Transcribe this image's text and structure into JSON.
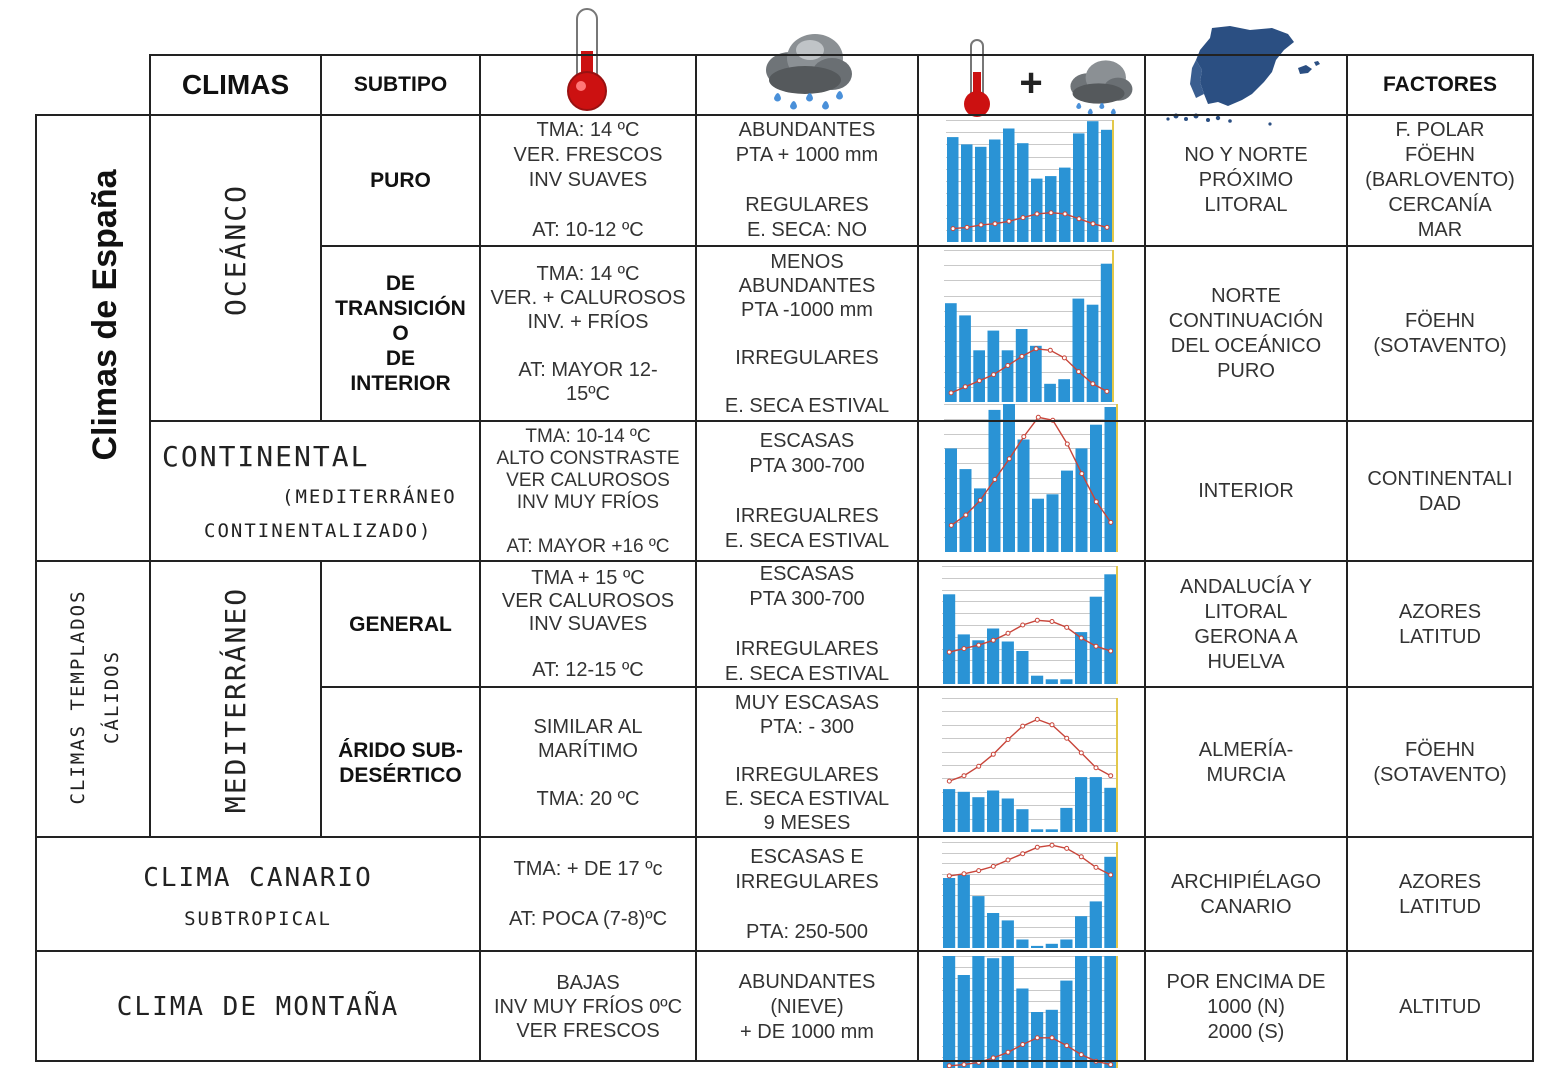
{
  "header": {
    "climas": "CLIMAS",
    "subtipo": "SUBTIPO",
    "factores": "FACTORES",
    "temp_icon": "thermometer-icon",
    "precip_icon": "rain-cloud-icon",
    "map_icon": "spain-map-icon"
  },
  "side": {
    "climas_espana": "Climas de España",
    "templados_1": "CLIMAS TEMPLADOS",
    "templados_2": "CÁLIDOS"
  },
  "groups": {
    "oceanico": "OCEÁNCO",
    "mediterraneo": "MEDITERRÁNEO",
    "continental": "CONTINENTAL",
    "continental_sub1": "(MEDITERRÁNEO",
    "continental_sub2": "CONTINENTALIZADO)",
    "canario": "CLIMA CANARIO",
    "canario_sub": "SUBTROPICAL",
    "montana": "CLIMA DE MONTAÑA"
  },
  "rows": [
    {
      "subtipo": "PURO",
      "temp": "TMA: 14 ºC\nVER. FRESCOS\nINV SUAVES\n\nAT: 10-12 ºC",
      "prec": "ABUNDANTES\nPTA + 1000 mm\n\nREGULARES\nE. SECA: NO",
      "loc": "NO Y NORTE\nPRÓXIMO\nLITORAL",
      "fact": "F. POLAR\nFÖEHN\n(BARLOVENTO)\nCERCANÍA\nMAR",
      "bars": [
        8.6,
        8.0,
        7.8,
        8.4,
        9.3,
        8.1,
        5.2,
        5.4,
        6.1,
        8.9,
        9.9,
        9.2
      ],
      "line": [
        1.1,
        1.2,
        1.4,
        1.5,
        1.7,
        2.0,
        2.3,
        2.4,
        2.3,
        1.9,
        1.5,
        1.2
      ]
    },
    {
      "subtipo": "DE\nTRANSICIÓN\nO\nDE\nINTERIOR",
      "temp": "TMA: 14 ºC\nVER. + CALUROSOS\nINV. + FRÍOS\n\nAT: MAYOR 12-\n15ºC",
      "prec": "MENOS\nABUNDANTES\nPTA -1000 mm\n\nIRREGULARES\n\nE. SECA ESTIVAL",
      "loc": "NORTE\nCONTINUACIÓN\nDEL OCEÁNICO\nPURO",
      "fact": "FÖEHN\n(SOTAVENTO)",
      "bars": [
        6.5,
        5.7,
        3.4,
        4.7,
        3.4,
        4.8,
        3.7,
        1.2,
        1.5,
        6.8,
        6.4,
        9.1
      ],
      "line": [
        0.6,
        1.0,
        1.4,
        1.8,
        2.4,
        3.0,
        3.5,
        3.4,
        2.9,
        2.0,
        1.2,
        0.7
      ]
    },
    {
      "temp": "TMA: 10-14 ºC\nALTO CONSTRASTE\nVER CALUROSOS\nINV MUY FRÍOS\n\nAT: MAYOR +16 ºC",
      "prec": "ESCASAS\nPTA 300-700\n\nIRREGUALRES\nE. SECA ESTIVAL",
      "loc": "INTERIOR",
      "fact": "CONTINENTALI\nDAD",
      "bars": [
        7.0,
        5.6,
        4.3,
        9.6,
        10.3,
        7.6,
        3.6,
        3.9,
        5.5,
        7.0,
        8.6,
        9.8
      ],
      "line": [
        1.8,
        2.5,
        3.5,
        4.9,
        6.3,
        7.8,
        9.1,
        8.9,
        7.3,
        5.3,
        3.4,
        2.0
      ]
    },
    {
      "subtipo": "GENERAL",
      "temp": "TMA + 15 ºC\nVER CALUROSOS\nINV SUAVES\n\nAT: 12-15 ºC",
      "prec": "ESCASAS\nPTA 300-700\n\nIRREGULARES\nE. SECA ESTIVAL",
      "loc": "ANDALUCÍA Y\nLITORAL\nGERONA A\nHUELVA",
      "fact": "AZORES\nLATITUD",
      "bars": [
        7.6,
        4.2,
        3.7,
        4.7,
        3.6,
        2.8,
        0.7,
        0.4,
        0.4,
        4.4,
        7.4,
        9.3
      ],
      "line": [
        2.7,
        3.0,
        3.3,
        3.7,
        4.3,
        5.0,
        5.4,
        5.3,
        4.8,
        3.9,
        3.2,
        2.8
      ]
    },
    {
      "subtipo": "ÁRIDO SUB-\nDESÉRTICO",
      "temp": "SIMILAR AL\nMARÍTIMO\n\nTMA: 20 ºC",
      "prec": "MUY ESCASAS\nPTA: - 300\n\nIRREGULARES\nE. SECA ESTIVAL\n9 MESES",
      "loc": "ALMERÍA-\nMURCIA",
      "fact": "FÖEHN\n(SOTAVENTO)",
      "bars": [
        3.2,
        3.0,
        2.6,
        3.1,
        2.5,
        1.7,
        0.2,
        0.2,
        1.8,
        4.1,
        4.1,
        3.3
      ],
      "line": [
        3.8,
        4.2,
        4.9,
        5.8,
        6.9,
        7.9,
        8.4,
        8.0,
        7.0,
        5.9,
        4.8,
        4.2
      ]
    },
    {
      "temp": "TMA: + DE 17 ºc\n\nAT: POCA (7-8)ºC",
      "prec": "ESCASAS E\nIRREGULARES\n\nPTA: 250-500",
      "loc": "ARCHIPIÉLAGO\nCANARIO",
      "fact": "AZORES\nLATITUD",
      "bars": [
        6.6,
        6.9,
        4.9,
        3.3,
        2.6,
        0.8,
        0.2,
        0.4,
        0.8,
        3.0,
        4.4,
        8.6
      ],
      "line": [
        6.8,
        7.0,
        7.3,
        7.7,
        8.3,
        8.9,
        9.5,
        9.7,
        9.4,
        8.6,
        7.6,
        6.9
      ]
    },
    {
      "temp": "BAJAS\nINV MUY FRÍOS 0ºC\nVER FRESCOS",
      "prec": "ABUNDANTES\n(NIEVE)\n+ DE 1000 mm",
      "loc": "POR ENCIMA DE\n1000 (N)\n2000 (S)",
      "fact": "ALTITUD",
      "bars": [
        10.0,
        8.3,
        10.0,
        9.8,
        10.0,
        7.1,
        5.0,
        5.2,
        7.8,
        10.0,
        10.0,
        10.0
      ],
      "line": [
        0.2,
        0.3,
        0.5,
        0.9,
        1.4,
        2.1,
        2.7,
        2.7,
        2.0,
        1.2,
        0.6,
        0.3
      ]
    }
  ],
  "colors": {
    "bar": "#2a93d5",
    "line": "#c8453a",
    "thermo": "#cc1111",
    "map": "#2b4f82"
  }
}
